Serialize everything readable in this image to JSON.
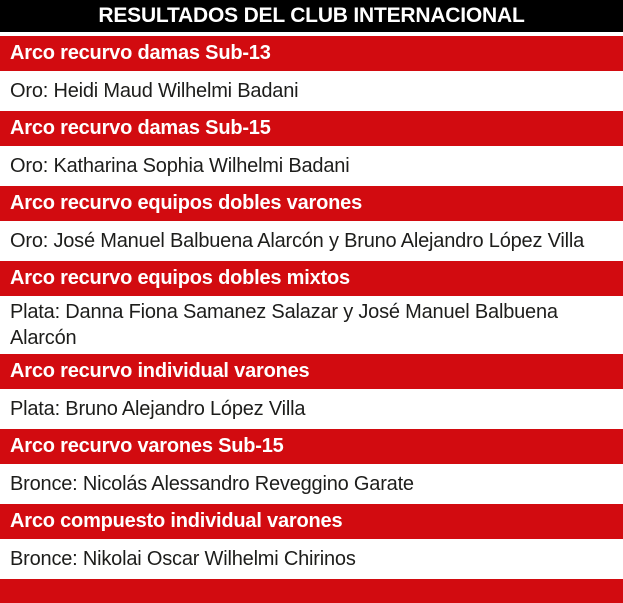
{
  "header": {
    "title": "RESULTADOS DEL CLUB INTERNACIONAL"
  },
  "colors": {
    "header_bg": "#000000",
    "header_text": "#ffffff",
    "category_bg": "#d20b10",
    "category_text": "#ffffff",
    "row_bg": "#ffffff",
    "row_text": "#1d1d1b"
  },
  "results": [
    {
      "category": "Arco recurvo damas Sub-13",
      "medal": "Oro: Heidi Maud Wilhelmi Badani"
    },
    {
      "category": "Arco recurvo damas Sub-15",
      "medal": "Oro: Katharina Sophia Wilhelmi Badani"
    },
    {
      "category": "Arco recurvo equipos dobles varones",
      "medal": "Oro: José Manuel Balbuena Alarcón y Bruno Alejandro López Villa"
    },
    {
      "category": "Arco recurvo equipos dobles mixtos",
      "medal": "Plata: Danna Fiona Samanez Salazar y José Manuel Balbuena Alarcón"
    },
    {
      "category": "Arco recurvo individual varones",
      "medal": "Plata: Bruno Alejandro López Villa"
    },
    {
      "category": "Arco recurvo varones Sub-15",
      "medal": "Bronce: Nicolás Alessandro Reveggino Garate"
    },
    {
      "category": "Arco compuesto individual varones",
      "medal": "Bronce: Nikolai Oscar Wilhelmi Chirinos"
    }
  ]
}
